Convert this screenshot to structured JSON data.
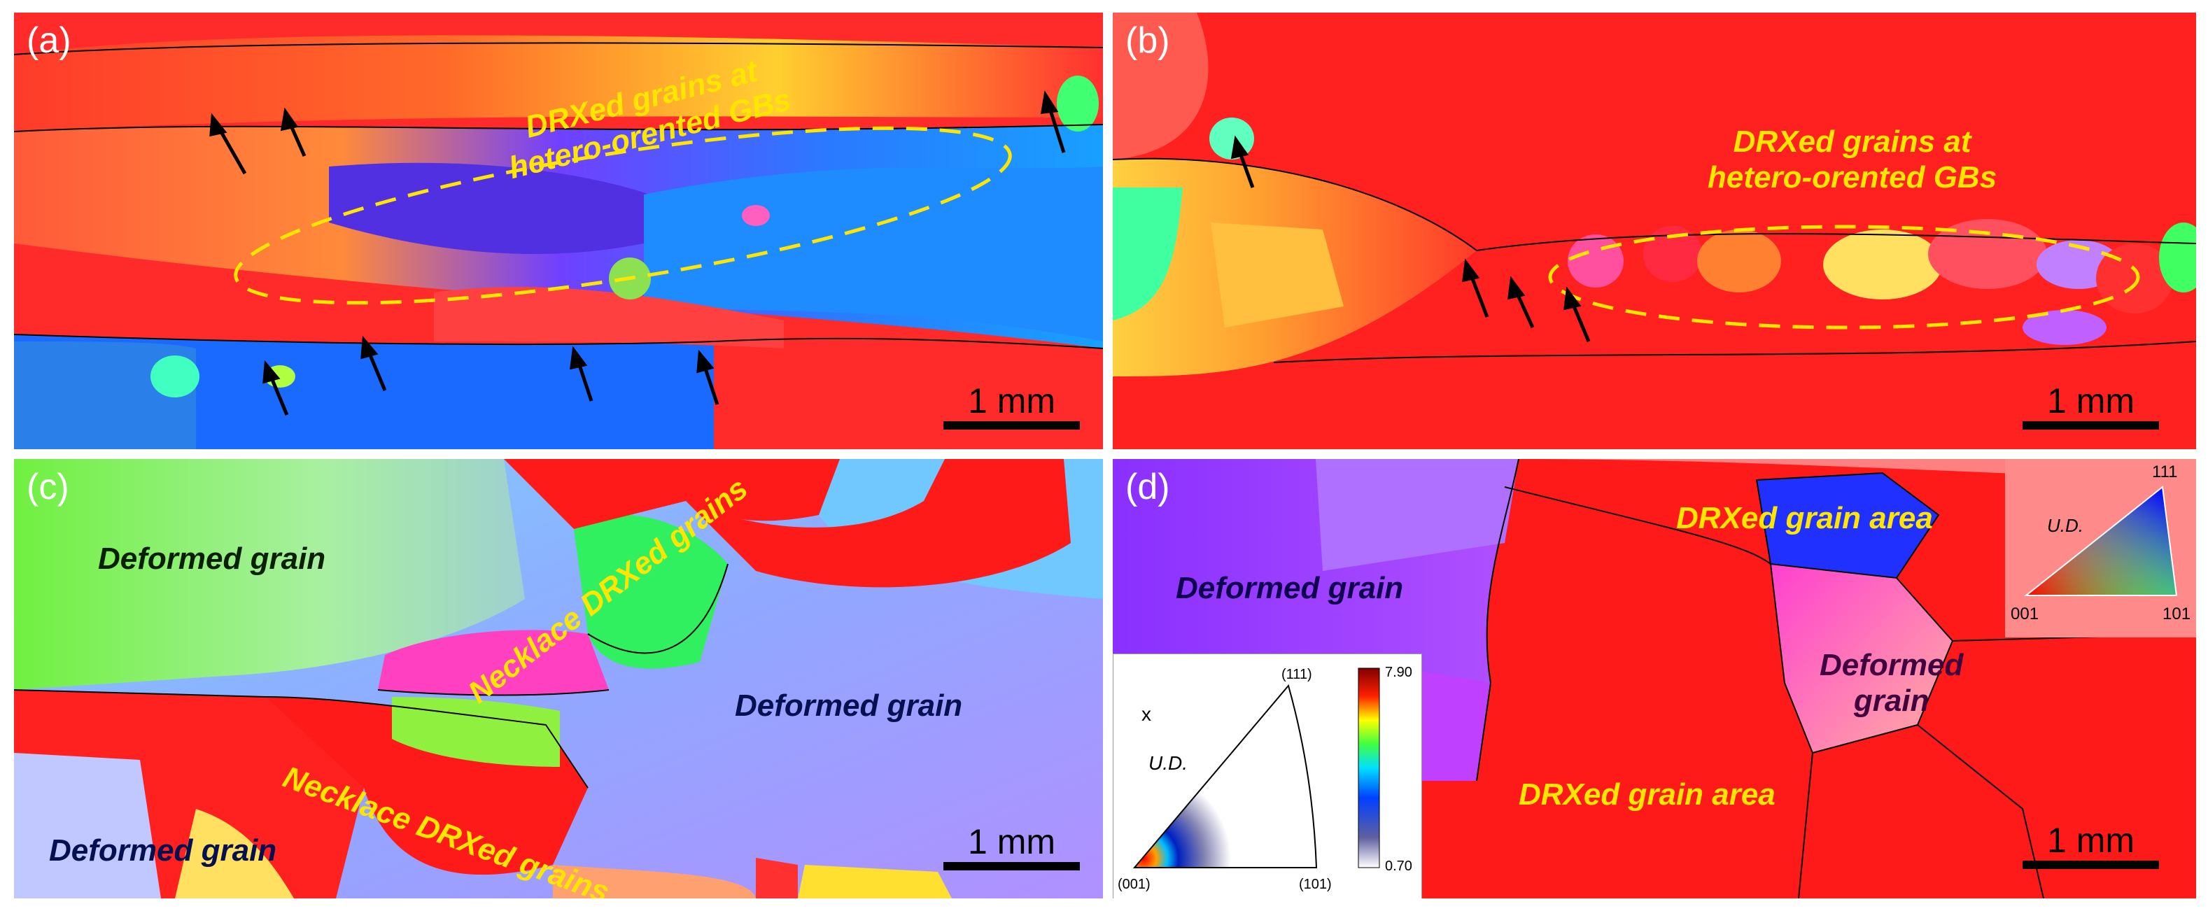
{
  "panels": {
    "a": {
      "label": "(a)",
      "annotation_line1": "DRXed grains at",
      "annotation_line2": "hetero-orented GBs",
      "scale": "1 mm"
    },
    "b": {
      "label": "(b)",
      "annotation_line1": "DRXed grains at",
      "annotation_line2": "hetero-orented GBs",
      "scale": "1 mm"
    },
    "c": {
      "label": "(c)",
      "deformed_1": "Deformed grain",
      "deformed_2": "Deformed grain",
      "deformed_3": "Deformed grain",
      "necklace_1": "Necklace DRXed grains",
      "necklace_2": "Necklace DRXed grains",
      "scale": "1 mm"
    },
    "d": {
      "label": "(d)",
      "deformed_1": "Deformed grain",
      "deformed_2_line1": "Deformed",
      "deformed_2_line2": "grain",
      "drx_area_1": "DRXed grain area",
      "drx_area_2": "DRXed grain area",
      "scale": "1 mm"
    }
  },
  "ipf_key": {
    "corner_top": "111",
    "corner_left": "001",
    "corner_right": "101",
    "axis": "U.D."
  },
  "pole_figure": {
    "axis_x": "x",
    "axis_label": "U.D.",
    "corner_top": "(111)",
    "corner_left": "(001)",
    "corner_right": "(101)",
    "colorbar_max": "7.90",
    "colorbar_min": "0.70"
  },
  "colors": {
    "annotation": "#ffe600",
    "dashed": "#ffe600",
    "red_grain": "#ff1a1a"
  }
}
